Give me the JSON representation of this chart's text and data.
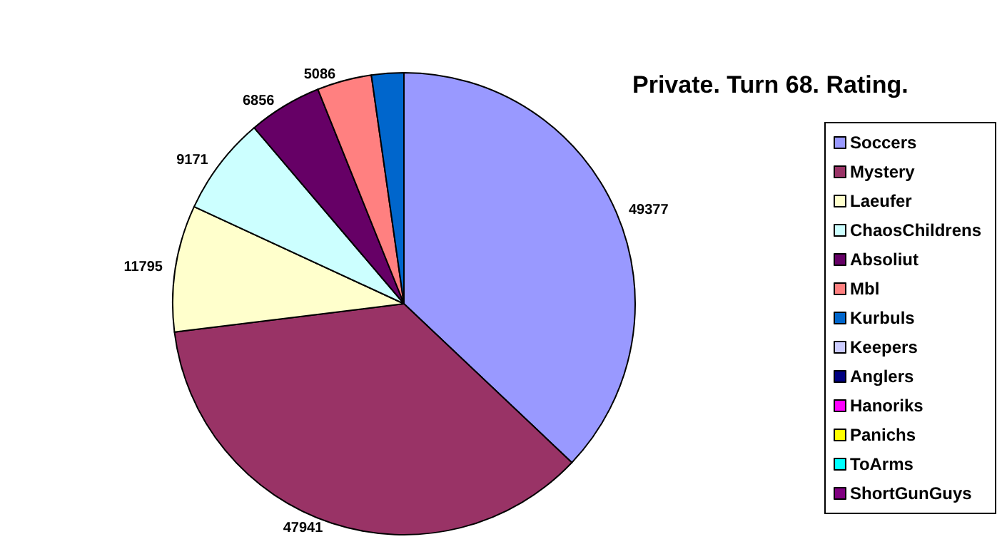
{
  "chart_data": {
    "type": "pie",
    "title": "Private. Turn 68. Rating.",
    "categories": [
      "Soccers",
      "Mystery",
      "Laeufer",
      "ChaosChildrens",
      "Absoliut",
      "Mbl",
      "Kurbuls",
      "Keepers",
      "Anglers",
      "Hanoriks",
      "Panichs",
      "ToArms",
      "ShortGunGuys"
    ],
    "values": [
      49377,
      47941,
      11795,
      9171,
      6856,
      5086,
      3000,
      0,
      0,
      0,
      0,
      0,
      0
    ],
    "value_labels": [
      "49377",
      "47941",
      "11795",
      "9171",
      "6856",
      "5086",
      null,
      null,
      null,
      null,
      null,
      null,
      null
    ],
    "colors": [
      "#9999ff",
      "#993366",
      "#ffffcc",
      "#ccffff",
      "#660066",
      "#ff8080",
      "#0066cc",
      "#ccccff",
      "#000080",
      "#ff00ff",
      "#ffff00",
      "#00ffff",
      "#800080"
    ],
    "legend": "right"
  }
}
